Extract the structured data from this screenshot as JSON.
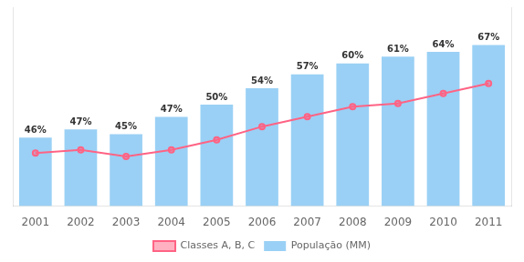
{
  "chart_data": {
    "type": "bar",
    "categories": [
      "2001",
      "2002",
      "2003",
      "2004",
      "2005",
      "2006",
      "2007",
      "2008",
      "2009",
      "2010",
      "2011"
    ],
    "series": [
      {
        "name": "População (MM)",
        "type": "bar",
        "values": [
          100,
          112,
          105,
          130,
          148,
          172,
          192,
          208,
          218,
          225,
          235
        ]
      },
      {
        "name": "Classes A, B, C",
        "type": "line",
        "axis": "y2",
        "marker": "circle",
        "values": [
          46,
          47,
          45,
          47,
          50,
          54,
          57,
          60,
          61,
          64,
          67
        ],
        "value_labels": [
          "46%",
          "47%",
          "45%",
          "47%",
          "50%",
          "54%",
          "57%",
          "60%",
          "61%",
          "64%",
          "67%"
        ],
        "data_labels": true
      }
    ],
    "ylim": [
      0,
      290
    ],
    "y2lim": [
      30,
      90
    ],
    "tick_labels": "x",
    "grid": false,
    "legend": "bottom"
  }
}
